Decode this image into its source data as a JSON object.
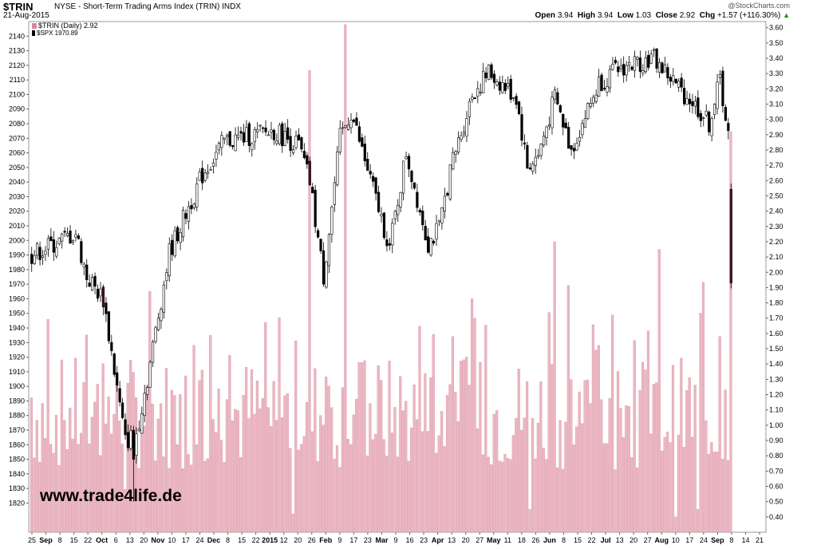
{
  "header": {
    "symbol": "$TRIN",
    "title": "NYSE - Short-Term Trading Arms Index (TRIN)",
    "tag": "INDX",
    "date": "21-Aug-2015",
    "brand": "@StockCharts.com",
    "ohlc": {
      "open_label": "Open",
      "open": "3.94",
      "high_label": "High",
      "high": "3.94",
      "low_label": "Low",
      "low": "1.03",
      "close_label": "Close",
      "close": "2.92",
      "chg_label": "Chg",
      "chg": "+1.57 (+116.30%)"
    }
  },
  "legend": {
    "trin_label": "$TRIN (Daily) 2.92",
    "spx_label": "$SPX 1970.89"
  },
  "watermark": "www.trade4life.de",
  "colors": {
    "trin_bar": "#ebb6c2",
    "trin_bar_edge": "#d48a9c",
    "candle_up": "#ffffff",
    "candle_down": "#000000",
    "candle_down_red": "#5a1020"
  },
  "chart_data": {
    "type": "bar",
    "left_axis": {
      "name": "$SPX",
      "ticks": [
        1820,
        1830,
        1840,
        1850,
        1860,
        1870,
        1880,
        1890,
        1900,
        1910,
        1920,
        1930,
        1940,
        1950,
        1960,
        1970,
        1980,
        1990,
        2000,
        2010,
        2020,
        2030,
        2040,
        2050,
        2060,
        2070,
        2080,
        2090,
        2100,
        2110,
        2120,
        2130,
        2140
      ],
      "ylim": [
        1800,
        2150
      ]
    },
    "right_axis": {
      "name": "$TRIN",
      "ticks": [
        "0.40",
        "0.50",
        "0.60",
        "0.70",
        "0.80",
        "0.90",
        "1.00",
        "1.10",
        "1.20",
        "1.30",
        "1.40",
        "1.50",
        "1.60",
        "1.70",
        "1.80",
        "1.90",
        "2.00",
        "2.10",
        "2.20",
        "2.30",
        "2.40",
        "2.50",
        "2.60",
        "2.70",
        "2.80",
        "2.90",
        "3.00",
        "3.10",
        "3.20",
        "3.30",
        "3.40",
        "3.50",
        "3.60"
      ],
      "ylim": [
        0.3,
        3.64
      ]
    },
    "x_labels": [
      "25",
      "Sep",
      "8",
      "15",
      "22",
      "Oct",
      "6",
      "13",
      "20",
      "Nov",
      "10",
      "17",
      "24",
      "Dec",
      "8",
      "15",
      "22",
      "2015",
      "12",
      "20",
      "26",
      "Feb",
      "9",
      "17",
      "23",
      "Mar",
      "9",
      "16",
      "23",
      "Apr",
      "13",
      "20",
      "27",
      "May",
      "11",
      "18",
      "26",
      "Jun",
      "8",
      "15",
      "22",
      "Jul",
      "13",
      "20",
      "27",
      "Aug",
      "10",
      "17",
      "24",
      "Sep",
      "8",
      "14",
      "21"
    ],
    "x_label_bold": [
      "Sep",
      "Oct",
      "Nov",
      "Dec",
      "2015",
      "Feb",
      "Mar",
      "Apr",
      "May",
      "Jun",
      "Jul",
      "Aug",
      "Sep"
    ],
    "trin_key_values": {
      "first": 1.18,
      "max": 3.62,
      "last": 2.92
    },
    "spx_key_values": {
      "first": 1990,
      "low": 1821,
      "high": 2131,
      "last": 1970.89
    }
  }
}
